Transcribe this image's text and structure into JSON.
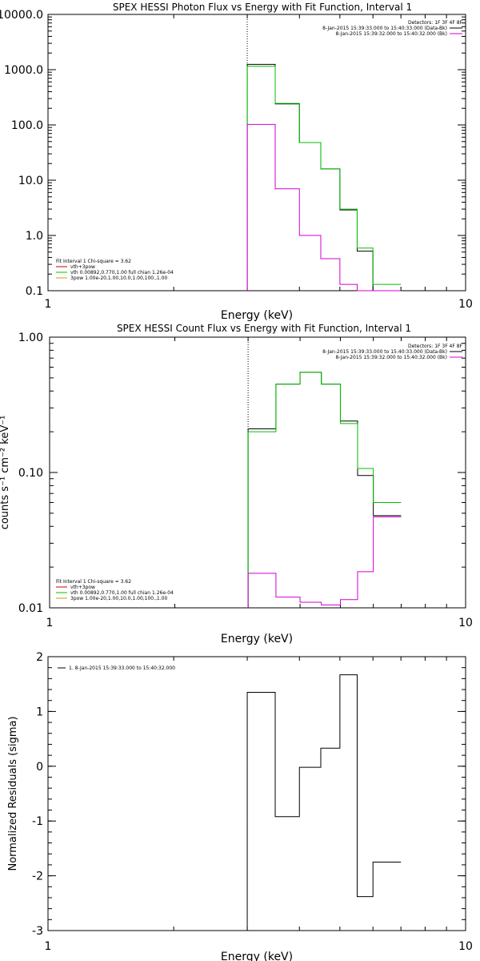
{
  "chart_data": [
    {
      "type": "line",
      "title": "SPEX HESSI Photon Flux vs Energy with Fit Function, Interval 1",
      "xlabel": "Energy (keV)",
      "ylabel": "",
      "xscale": "log",
      "yscale": "log",
      "xlim": [
        1,
        10
      ],
      "ylim": [
        0.1,
        10000
      ],
      "xtick_labels": [
        {
          "value": 1,
          "label": "1"
        },
        {
          "value": 10,
          "label": "10"
        }
      ],
      "ytick_labels": [
        {
          "value": 0.1,
          "label": "0.1"
        },
        {
          "value": 1,
          "label": "1.0"
        },
        {
          "value": 10,
          "label": "10.0"
        },
        {
          "value": 100,
          "label": "100.0"
        },
        {
          "value": 1000,
          "label": "1000.0"
        },
        {
          "value": 10000,
          "label": "10000.0"
        }
      ],
      "vline_x": 3.0,
      "legend_right": [
        {
          "text": "Detectors: 1F 3F 4F 8F",
          "color": null
        },
        {
          "text": "8-Jan-2015 15:39:33.000 to 15:40:33.000 (Data-Bk)",
          "color": "#000000"
        },
        {
          "text": "8-Jan-2015 15:39:32.000 to 15:40:32.000 (Bk)",
          "color": "#d000d0"
        }
      ],
      "legend_left": [
        {
          "text": "Fit Interval  1    Chi-square = 3.62",
          "color": null
        },
        {
          "text": "vth+3pow",
          "color": "#d00000"
        },
        {
          "text": "vth 0.00892,0.770,1.00  full chian 1.26e-04",
          "color": "#00c000"
        },
        {
          "text": "3pow 1.00e-20,1.00,10.0,1.00,100.,1.00",
          "color": "#c8a000"
        }
      ],
      "bin_edges": [
        3.0,
        3.5,
        4.0,
        4.5,
        5.0,
        5.5,
        6.0,
        7.0
      ],
      "series": [
        {
          "color": "#000000",
          "values": [
            1250,
            240,
            48,
            16,
            2.9,
            0.52,
            0.1
          ]
        },
        {
          "color": "#00c000",
          "values": [
            1150,
            245,
            48,
            16,
            3.0,
            0.59,
            0.13
          ]
        },
        {
          "color": "#d000d0",
          "values": [
            102,
            7.0,
            1.0,
            0.38,
            0.13,
            0.1,
            0.1
          ]
        }
      ]
    },
    {
      "type": "line",
      "title": "SPEX HESSI Count Flux vs Energy with Fit Function, Interval 1",
      "xlabel": "Energy (keV)",
      "ylabel": "counts s⁻¹ cm⁻² keV⁻¹",
      "xscale": "log",
      "yscale": "log",
      "xlim": [
        1,
        10
      ],
      "ylim": [
        0.01,
        1.0
      ],
      "xtick_labels": [
        {
          "value": 1,
          "label": "1"
        },
        {
          "value": 10,
          "label": "10"
        }
      ],
      "ytick_labels": [
        {
          "value": 0.01,
          "label": "0.01"
        },
        {
          "value": 0.1,
          "label": "0.10"
        },
        {
          "value": 1,
          "label": "1.00"
        }
      ],
      "vline_x": 3.0,
      "legend_right": [
        {
          "text": "Detectors: 1F 3F 4F 8F",
          "color": null
        },
        {
          "text": "8-Jan-2015 15:39:33.000 to 15:40:33.000 (Data-Bk)",
          "color": "#000000"
        },
        {
          "text": "8-Jan-2015 15:39:32.000 to 15:40:32.000 (Bk)",
          "color": "#d000d0"
        }
      ],
      "legend_left": [
        {
          "text": "Fit Interval  1    Chi-square = 3.62",
          "color": null
        },
        {
          "text": "vth+3pow",
          "color": "#d00000"
        },
        {
          "text": "vth 0.00892,0.770,1.00  full chian 1.26e-04",
          "color": "#00c000"
        },
        {
          "text": "3pow 1.00e-20,1.00,10.0,1.00,100.,1.00",
          "color": "#c8a000"
        }
      ],
      "bin_edges": [
        3.0,
        3.5,
        4.0,
        4.5,
        5.0,
        5.5,
        6.0,
        7.0
      ],
      "series": [
        {
          "color": "#000000",
          "values": [
            0.21,
            0.45,
            0.55,
            0.45,
            0.24,
            0.095,
            0.048
          ]
        },
        {
          "color": "#00c000",
          "values": [
            0.2,
            0.45,
            0.55,
            0.45,
            0.23,
            0.107,
            0.06
          ]
        },
        {
          "color": "#d000d0",
          "values": [
            0.018,
            0.012,
            0.011,
            0.0105,
            0.0115,
            0.0185,
            0.047
          ]
        }
      ]
    },
    {
      "type": "line",
      "title": "",
      "xlabel": "Energy (keV)",
      "ylabel": "Normalized Residuals (sigma)",
      "xscale": "log",
      "yscale": "linear",
      "xlim": [
        1,
        10
      ],
      "ylim": [
        -3,
        2
      ],
      "xtick_labels": [
        {
          "value": 1,
          "label": "1"
        },
        {
          "value": 10,
          "label": "10"
        }
      ],
      "ytick_labels": [
        {
          "value": -3,
          "label": "-3"
        },
        {
          "value": -2,
          "label": "-2"
        },
        {
          "value": -1,
          "label": "-1"
        },
        {
          "value": 0,
          "label": "0"
        },
        {
          "value": 1,
          "label": "1"
        },
        {
          "value": 2,
          "label": "2"
        }
      ],
      "legend_left": [
        {
          "text": "1.  8-Jan-2015 15:39:33.000 to 15:40:32.000",
          "color": "#000000"
        }
      ],
      "bin_edges": [
        3.0,
        3.5,
        4.0,
        4.5,
        5.0,
        5.5,
        6.0,
        7.0
      ],
      "series": [
        {
          "color": "#000000",
          "values": [
            1.35,
            -0.92,
            -0.02,
            0.33,
            1.67,
            -2.38,
            -1.75
          ]
        }
      ]
    }
  ]
}
